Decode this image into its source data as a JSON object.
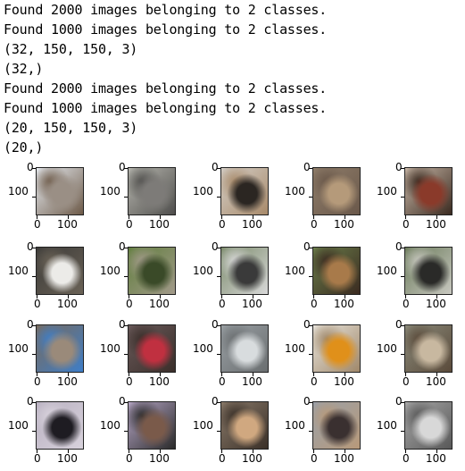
{
  "output_lines": [
    "Found 2000 images belonging to 2 classes.",
    "Found 1000 images belonging to 2 classes.",
    "(32, 150, 150, 3)",
    "(32,)",
    "Found 2000 images belonging to 2 classes.",
    "Found 1000 images belonging to 2 classes.",
    "(20, 150, 150, 3)",
    "(20,)"
  ],
  "axis_ticks": {
    "y0": "0",
    "y100": "100",
    "x0": "0",
    "x100": "100"
  },
  "thumbnails": [
    [
      "#e9eef4",
      "#9a8f85",
      "#6d5a48"
    ],
    [
      "#b8b8b0",
      "#7d7b78",
      "#4f4e4c"
    ],
    [
      "#d4cfc8",
      "#2b2622",
      "#a88a6a"
    ],
    [
      "#8f7d6a",
      "#b59a7a",
      "#6a584a"
    ],
    [
      "#c9b8a8",
      "#8a3a2a",
      "#3a2a20"
    ],
    [
      "#3b3a38",
      "#ecebe8",
      "#6a6256"
    ],
    [
      "#5f7d3c",
      "#3a4a28",
      "#a29a8a"
    ],
    [
      "#7a8a6a",
      "#3a3a3a",
      "#d8d8d8"
    ],
    [
      "#6a7d4a",
      "#a87a4a",
      "#3a2a20"
    ],
    [
      "#6a7a5a",
      "#2a2a28",
      "#c8c8c0"
    ],
    [
      "#7a6a5a",
      "#9a8a7a",
      "#3e7ec8"
    ],
    [
      "#6a5a5a",
      "#c03040",
      "#3a2e2a"
    ],
    [
      "#9aa0a4",
      "#d8dcde",
      "#6a6e70"
    ],
    [
      "#e8e4dc",
      "#e0901a",
      "#a0886a"
    ],
    [
      "#8a8a7a",
      "#c8b8a0",
      "#5a4a3a"
    ],
    [
      "#b8b0c0",
      "#1e1c22",
      "#d8d2dc"
    ],
    [
      "#b8a8c8",
      "#7a5a4a",
      "#2a2a2a"
    ],
    [
      "#8a7a6a",
      "#d0a880",
      "#3a3028"
    ],
    [
      "#9aa0a8",
      "#3a3030",
      "#b89a7a"
    ],
    [
      "#a8a8a8",
      "#d8d8d8",
      "#585858"
    ]
  ]
}
